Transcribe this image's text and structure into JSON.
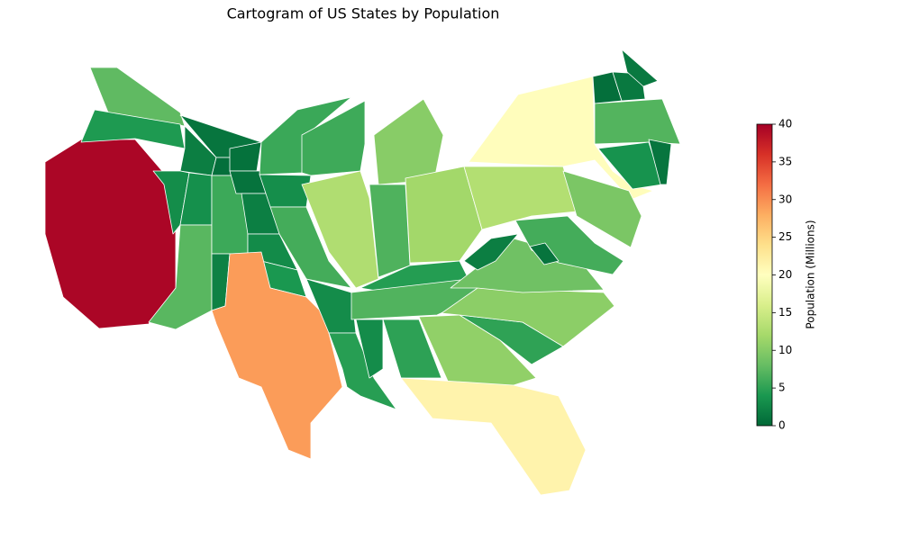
{
  "chart_data": {
    "type": "choropleth",
    "title": "Cartogram of US States by Population",
    "values": [
      39.5,
      7.7,
      4.2,
      1.8,
      1.1,
      3.1,
      3.3,
      7.3,
      0.6,
      5.8,
      2.1,
      0.8,
      0.9,
      1.9,
      2.9,
      4.0,
      29.1,
      5.7,
      3.2,
      6.2,
      3.0,
      4.7,
      5.9,
      12.8,
      10.1,
      6.8,
      11.8,
      4.5,
      6.9,
      3.0,
      5.0,
      10.7,
      21.5,
      5.1,
      10.4,
      8.6,
      1.8,
      13.0,
      20.2,
      9.3,
      6.2,
      1.0,
      0.6,
      1.4,
      1.4,
      7.0,
      3.6,
      1.1
    ],
    "colorscale": [
      "#006837",
      "#1a9850",
      "#66bd63",
      "#a6d96a",
      "#d9ef8b",
      "#ffffbf",
      "#fee08b",
      "#fdae61",
      "#f46d43",
      "#d73027",
      "#a50026"
    ],
    "colorbar_label": "Population (Millions)",
    "ylim": [
      0,
      40
    ],
    "yticks": [
      0,
      5,
      10,
      15,
      20,
      25,
      30,
      35,
      40
    ]
  }
}
